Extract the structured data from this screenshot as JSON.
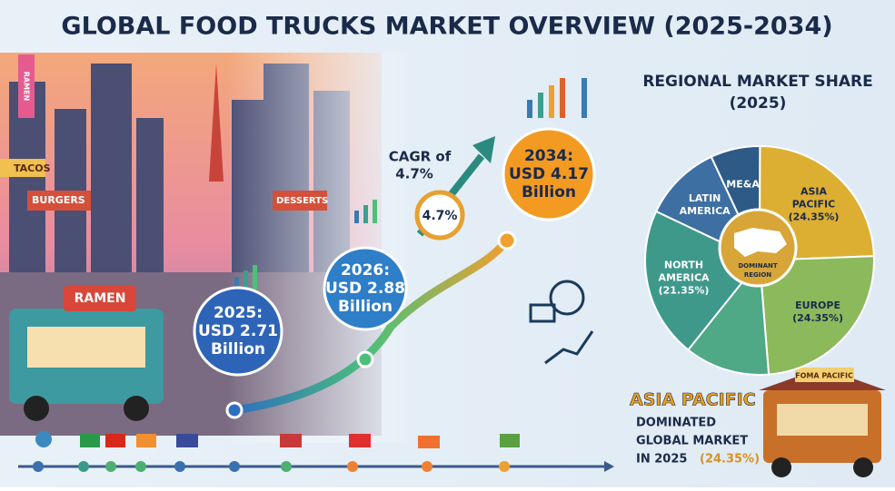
{
  "title": "GLOBAL FOOD TRUCKS MARKET OVERVIEW (2025-2034)",
  "scene_signs": [
    "RAMEN",
    "TACOS",
    "BURGERS",
    "DESSERTS",
    "RAMEN"
  ],
  "milestones": [
    {
      "year": "2025:",
      "value": "USD 2.71",
      "unit": "Billion"
    },
    {
      "year": "2026:",
      "value": "USD 2.88",
      "unit": "Billion"
    },
    {
      "year": "2034:",
      "value": "USD 4.17",
      "unit": "Billion"
    }
  ],
  "cagr": {
    "label_line1": "CAGR of",
    "label_line2": "4.7%",
    "badge": "4.7%"
  },
  "regional": {
    "title_line1": "REGIONAL MARKET SHARE",
    "title_line2": "(2025)",
    "center": [
      "DOMINANT",
      "REGION"
    ],
    "segments": [
      {
        "name": [
          "ME&A"
        ],
        "value": 7,
        "color": "#2d5a86"
      },
      {
        "name": [
          "ASIA",
          "PACIFIC"
        ],
        "value": 24.35,
        "value_label": "(24.35%)",
        "color": "#dcae32"
      },
      {
        "name": [
          "EUROPE"
        ],
        "value": 24.35,
        "value_label": "(24.35%)",
        "color": "#8cb95c"
      },
      {
        "name": null,
        "value": 12,
        "color": "#4fa886"
      },
      {
        "name": [
          "NORTH",
          "AMERICA"
        ],
        "value": 21.35,
        "value_label": "(21.35%)",
        "color": "#3f998b"
      },
      {
        "name": [
          "LATIN",
          "AMERICA"
        ],
        "value": 11,
        "color": "#3d6fa3"
      }
    ]
  },
  "callout": {
    "headline": "ASIA PACIFIC",
    "line1": "DOMINATED",
    "line2": "GLOBAL MARKET",
    "line3": "IN 2025",
    "share": "(24.35%)",
    "truck_sign": "FOMA PACIFIC"
  }
}
